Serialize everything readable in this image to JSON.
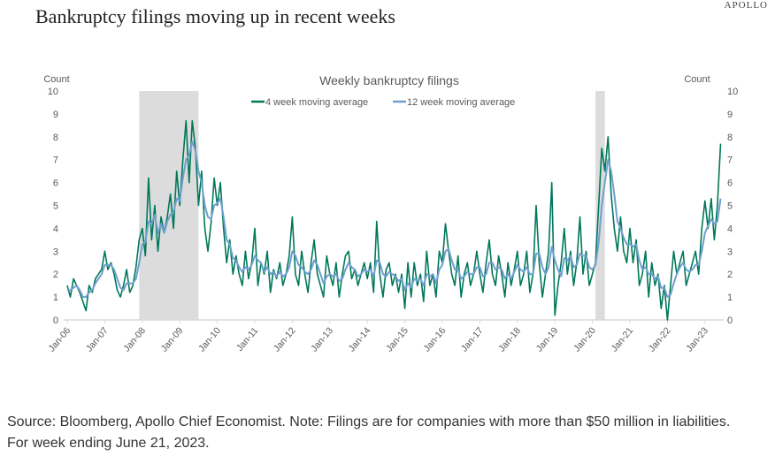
{
  "header": {
    "title": "Bankruptcy filings moving up in recent weeks",
    "brand": "APOLLO"
  },
  "source": "Source: Bloomberg, Apollo Chief Economist. Note: Filings are for companies with more than $50 million in liabilities. For week ending June 21, 2023.",
  "chart_data": {
    "type": "line",
    "title": "Weekly bankruptcy filings",
    "ylabel_left": "Count",
    "ylabel_right": "Count",
    "ylim": [
      0,
      10
    ],
    "yticks": [
      "0",
      "1",
      "2",
      "3",
      "4",
      "5",
      "6",
      "7",
      "8",
      "9",
      "10"
    ],
    "xticks": [
      "Jan-06",
      "Jan-07",
      "Jan-08",
      "Jan-09",
      "Jan-10",
      "Jan-11",
      "Jan-12",
      "Jan-13",
      "Jan-14",
      "Jan-15",
      "Jan-16",
      "Jan-17",
      "Jan-18",
      "Jan-19",
      "Jan-20",
      "Jan-21",
      "Jan-22",
      "Jan-23"
    ],
    "x_start": "2006-01",
    "frequency": "monthly",
    "legend": "top-center",
    "recessions": [
      [
        "2007-12",
        "2009-06"
      ],
      [
        "2020-02",
        "2020-04"
      ]
    ],
    "colors": {
      "ma4": "#00785a",
      "ma12": "#6f9fd0",
      "recession": "#dcdcdc",
      "axis": "#d9d9d9",
      "text": "#595959"
    },
    "series": [
      {
        "name": "4 week moving average",
        "values": [
          1.5,
          1.0,
          1.8,
          1.5,
          1.2,
          0.8,
          0.4,
          1.5,
          1.2,
          1.8,
          2.0,
          2.2,
          3.0,
          2.2,
          2.5,
          2.0,
          1.3,
          1.0,
          1.5,
          2.2,
          1.2,
          1.5,
          2.3,
          3.5,
          4.0,
          2.8,
          6.2,
          3.5,
          5.0,
          3.0,
          4.5,
          3.8,
          4.5,
          5.5,
          4.0,
          6.5,
          5.0,
          7.0,
          8.7,
          6.0,
          8.7,
          7.5,
          5.0,
          6.5,
          4.0,
          3.0,
          4.2,
          6.2,
          5.0,
          6.0,
          4.0,
          2.5,
          3.5,
          2.0,
          2.8,
          2.0,
          1.5,
          3.0,
          1.8,
          2.5,
          4.0,
          1.5,
          2.5,
          2.0,
          3.0,
          1.2,
          2.2,
          1.8,
          2.5,
          1.5,
          2.0,
          2.8,
          4.5,
          2.0,
          1.5,
          3.0,
          2.0,
          1.2,
          2.5,
          3.5,
          2.0,
          1.5,
          1.0,
          2.8,
          2.0,
          1.5,
          2.5,
          1.0,
          2.0,
          2.8,
          3.0,
          1.8,
          2.2,
          1.5,
          2.0,
          2.5,
          1.8,
          2.5,
          1.2,
          4.3,
          2.0,
          1.0,
          2.2,
          2.5,
          1.5,
          2.0,
          1.2,
          2.0,
          0.5,
          2.5,
          1.0,
          2.5,
          1.5,
          2.0,
          0.8,
          3.0,
          1.5,
          2.0,
          1.0,
          3.0,
          2.5,
          4.2,
          3.0,
          2.0,
          1.5,
          2.8,
          1.0,
          2.0,
          2.5,
          1.5,
          2.0,
          3.0,
          2.0,
          1.2,
          2.5,
          3.5,
          2.0,
          1.5,
          2.8,
          2.0,
          1.0,
          2.5,
          1.5,
          2.2,
          3.0,
          1.5,
          2.0,
          3.0,
          1.2,
          2.0,
          5.0,
          2.5,
          1.0,
          2.0,
          3.0,
          6.0,
          0.2,
          1.5,
          2.5,
          4.0,
          2.0,
          3.0,
          1.5,
          2.5,
          4.5,
          2.0,
          3.0,
          1.5,
          2.0,
          2.5,
          5.0,
          7.5,
          6.5,
          8.0,
          5.5,
          4.0,
          3.0,
          4.5,
          3.0,
          2.5,
          4.0,
          2.5,
          3.5,
          1.5,
          2.0,
          3.0,
          1.0,
          2.5,
          1.5,
          2.0,
          0.5,
          1.5,
          0.0,
          1.5,
          3.0,
          2.0,
          2.5,
          3.0,
          1.5,
          2.0,
          2.5,
          3.0,
          2.0,
          4.0,
          5.2,
          4.0,
          5.3,
          3.5,
          5.0,
          7.7
        ]
      },
      {
        "name": "12 week moving average",
        "values": [
          1.3,
          1.3,
          1.4,
          1.5,
          1.3,
          1.0,
          1.0,
          1.2,
          1.3,
          1.6,
          1.8,
          2.0,
          2.4,
          2.4,
          2.4,
          2.2,
          1.8,
          1.4,
          1.3,
          1.6,
          1.6,
          1.6,
          1.8,
          2.5,
          3.3,
          3.4,
          4.3,
          4.2,
          4.6,
          3.8,
          4.2,
          3.8,
          4.3,
          4.6,
          4.7,
          5.3,
          5.2,
          6.2,
          7.0,
          7.2,
          7.8,
          7.4,
          6.5,
          6.0,
          5.0,
          4.5,
          4.4,
          5.0,
          5.1,
          5.3,
          4.5,
          3.5,
          3.3,
          2.7,
          2.6,
          2.3,
          2.1,
          2.3,
          2.2,
          2.4,
          2.8,
          2.6,
          2.5,
          2.1,
          2.3,
          2.0,
          2.1,
          1.9,
          2.1,
          1.9,
          2.0,
          2.3,
          3.0,
          2.8,
          2.4,
          2.3,
          2.1,
          2.0,
          2.2,
          2.6,
          2.4,
          2.0,
          1.6,
          1.9,
          2.0,
          1.9,
          2.0,
          1.7,
          1.8,
          2.2,
          2.5,
          2.3,
          2.2,
          1.9,
          2.0,
          2.2,
          2.1,
          2.2,
          1.9,
          2.6,
          2.5,
          2.0,
          1.9,
          2.1,
          2.0,
          1.9,
          1.7,
          1.8,
          1.3,
          1.6,
          1.4,
          1.8,
          1.7,
          1.8,
          1.5,
          2.0,
          1.9,
          2.0,
          1.6,
          2.2,
          2.4,
          3.0,
          3.1,
          2.6,
          2.2,
          2.2,
          1.8,
          1.9,
          2.1,
          2.0,
          2.0,
          2.3,
          2.3,
          1.9,
          2.0,
          2.5,
          2.5,
          2.2,
          2.3,
          2.2,
          1.8,
          2.0,
          1.8,
          2.1,
          2.4,
          2.2,
          2.1,
          2.3,
          2.0,
          2.0,
          2.9,
          2.9,
          2.3,
          2.0,
          2.3,
          3.2,
          2.6,
          2.2,
          1.9,
          2.7,
          2.6,
          2.8,
          2.3,
          2.4,
          2.9,
          2.8,
          2.8,
          2.3,
          2.2,
          2.4,
          3.4,
          5.0,
          6.0,
          7.0,
          6.5,
          5.5,
          4.3,
          4.0,
          3.6,
          3.3,
          3.3,
          3.2,
          3.3,
          2.6,
          2.2,
          2.3,
          2.0,
          2.0,
          1.8,
          1.9,
          1.4,
          1.4,
          1.0,
          1.1,
          1.6,
          2.0,
          2.3,
          2.5,
          2.2,
          2.1,
          2.2,
          2.4,
          2.4,
          3.0,
          3.8,
          4.1,
          4.4,
          4.2,
          4.3,
          5.3
        ]
      }
    ]
  }
}
